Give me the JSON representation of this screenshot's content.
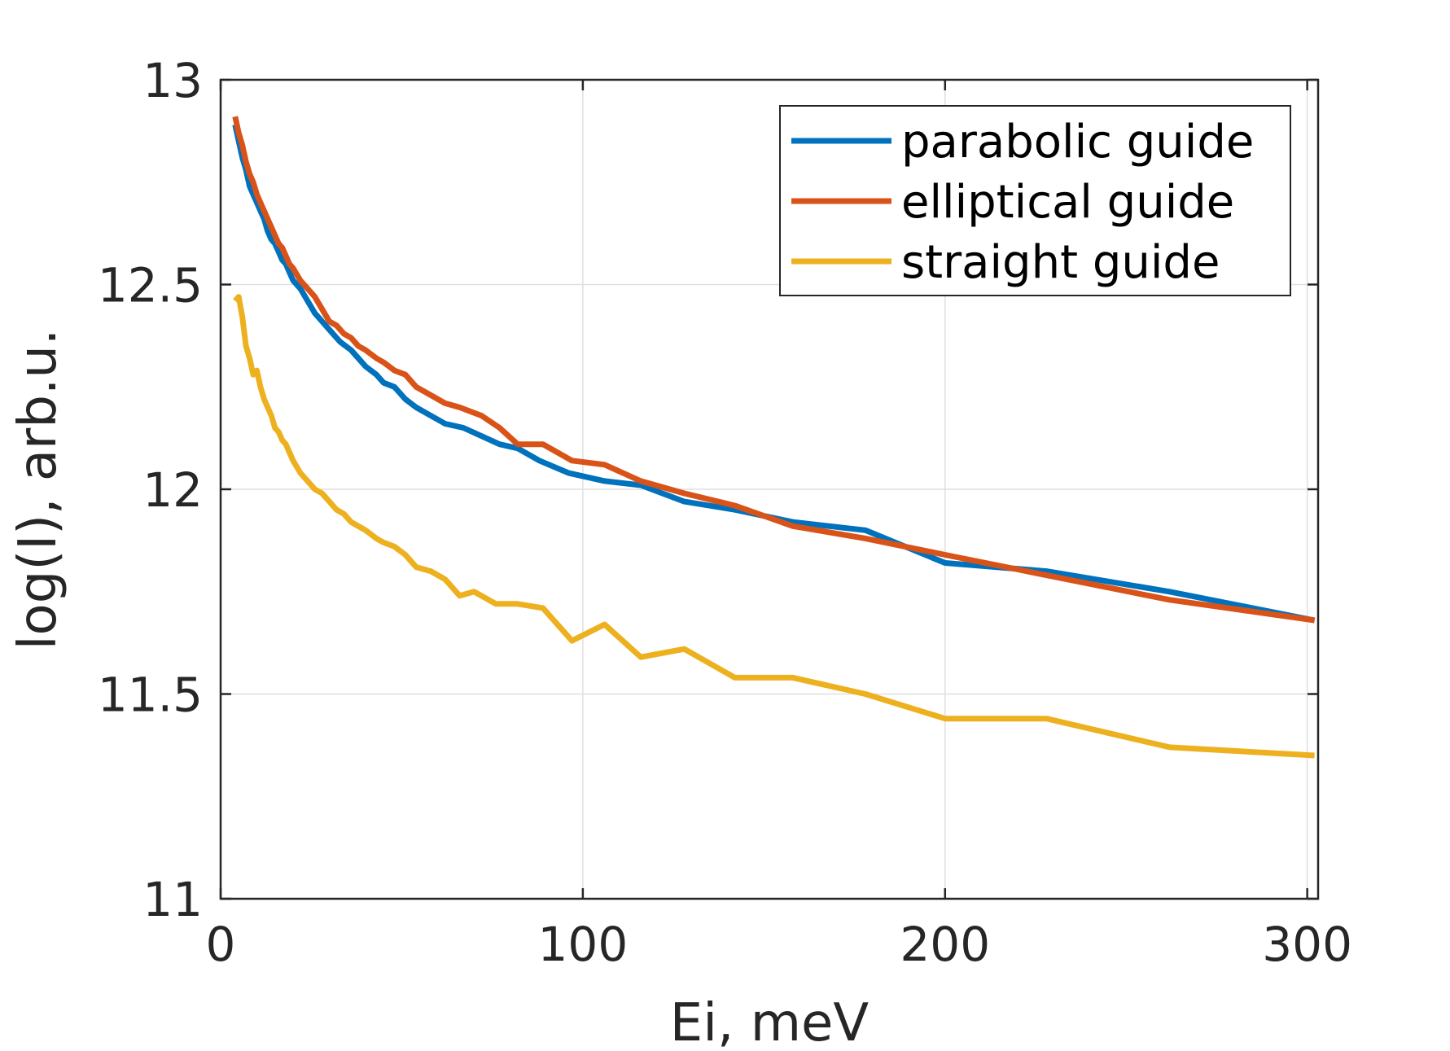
{
  "chart_data": {
    "type": "line",
    "title": "",
    "xlabel": "Ei, meV",
    "ylabel": "log(I), arb.u.",
    "xlim": [
      0,
      303
    ],
    "ylim": [
      11,
      13
    ],
    "xticks": [
      0,
      100,
      200,
      300
    ],
    "yticks": [
      11,
      11.5,
      12,
      12.5,
      13
    ],
    "xtick_labels": [
      "0",
      "100",
      "200",
      "300"
    ],
    "ytick_labels": [
      "11",
      "11.5",
      "12",
      "12.5",
      "13"
    ],
    "grid": true,
    "legend_position": "top-right",
    "series": [
      {
        "name": "parabolic guide",
        "color": "#0072BD",
        "points": [
          [
            4,
            12.89
          ],
          [
            5,
            12.85
          ],
          [
            6,
            12.81
          ],
          [
            7,
            12.78
          ],
          [
            8,
            12.74
          ],
          [
            9,
            12.72
          ],
          [
            10,
            12.7
          ],
          [
            11,
            12.68
          ],
          [
            12,
            12.66
          ],
          [
            13,
            12.63
          ],
          [
            14,
            12.61
          ],
          [
            15,
            12.6
          ],
          [
            16,
            12.58
          ],
          [
            17,
            12.56
          ],
          [
            18,
            12.55
          ],
          [
            19,
            12.53
          ],
          [
            20,
            12.51
          ],
          [
            22,
            12.49
          ],
          [
            24,
            12.46
          ],
          [
            26,
            12.43
          ],
          [
            28,
            12.41
          ],
          [
            31,
            12.38
          ],
          [
            33,
            12.36
          ],
          [
            36,
            12.34
          ],
          [
            38,
            12.32
          ],
          [
            40,
            12.3
          ],
          [
            43,
            12.28
          ],
          [
            45,
            12.26
          ],
          [
            48,
            12.25
          ],
          [
            51,
            12.22
          ],
          [
            54,
            12.2
          ],
          [
            58,
            12.18
          ],
          [
            62,
            12.16
          ],
          [
            67,
            12.15
          ],
          [
            72,
            12.13
          ],
          [
            77,
            12.11
          ],
          [
            82,
            12.1
          ],
          [
            88,
            12.07
          ],
          [
            96,
            12.04
          ],
          [
            106,
            12.02
          ],
          [
            116,
            12.01
          ],
          [
            128,
            11.97
          ],
          [
            142,
            11.95
          ],
          [
            158,
            11.92
          ],
          [
            178,
            11.9
          ],
          [
            200,
            11.82
          ],
          [
            228,
            11.8
          ],
          [
            262,
            11.75
          ],
          [
            302,
            11.68
          ]
        ]
      },
      {
        "name": "elliptical guide",
        "color": "#D95319",
        "points": [
          [
            4,
            12.91
          ],
          [
            5,
            12.87
          ],
          [
            6,
            12.84
          ],
          [
            7,
            12.8
          ],
          [
            8,
            12.77
          ],
          [
            9,
            12.75
          ],
          [
            10,
            12.72
          ],
          [
            11,
            12.7
          ],
          [
            12,
            12.68
          ],
          [
            13,
            12.66
          ],
          [
            14,
            12.64
          ],
          [
            15,
            12.62
          ],
          [
            16,
            12.6
          ],
          [
            17,
            12.59
          ],
          [
            18,
            12.57
          ],
          [
            19,
            12.55
          ],
          [
            20,
            12.54
          ],
          [
            22,
            12.51
          ],
          [
            24,
            12.49
          ],
          [
            26,
            12.47
          ],
          [
            28,
            12.44
          ],
          [
            30,
            12.41
          ],
          [
            32,
            12.4
          ],
          [
            34,
            12.38
          ],
          [
            36,
            12.37
          ],
          [
            38,
            12.35
          ],
          [
            40,
            12.34
          ],
          [
            43,
            12.32
          ],
          [
            45,
            12.31
          ],
          [
            48,
            12.29
          ],
          [
            51,
            12.28
          ],
          [
            54,
            12.25
          ],
          [
            58,
            12.23
          ],
          [
            62,
            12.21
          ],
          [
            66,
            12.2
          ],
          [
            72,
            12.18
          ],
          [
            77,
            12.15
          ],
          [
            82,
            12.11
          ],
          [
            89,
            12.11
          ],
          [
            97,
            12.07
          ],
          [
            106,
            12.06
          ],
          [
            116,
            12.02
          ],
          [
            128,
            11.99
          ],
          [
            142,
            11.96
          ],
          [
            158,
            11.91
          ],
          [
            178,
            11.88
          ],
          [
            200,
            11.84
          ],
          [
            228,
            11.79
          ],
          [
            262,
            11.73
          ],
          [
            302,
            11.68
          ]
        ]
      },
      {
        "name": "straight guide",
        "color": "#EDB120",
        "points": [
          [
            4,
            12.46
          ],
          [
            5,
            12.47
          ],
          [
            6,
            12.42
          ],
          [
            7,
            12.35
          ],
          [
            8,
            12.32
          ],
          [
            9,
            12.28
          ],
          [
            10,
            12.29
          ],
          [
            11,
            12.25
          ],
          [
            12,
            12.22
          ],
          [
            13,
            12.2
          ],
          [
            14,
            12.18
          ],
          [
            15,
            12.15
          ],
          [
            16,
            12.14
          ],
          [
            17,
            12.12
          ],
          [
            18,
            12.11
          ],
          [
            19,
            12.09
          ],
          [
            20,
            12.07
          ],
          [
            22,
            12.04
          ],
          [
            24,
            12.02
          ],
          [
            26,
            12.0
          ],
          [
            28,
            11.99
          ],
          [
            30,
            11.97
          ],
          [
            32,
            11.95
          ],
          [
            34,
            11.94
          ],
          [
            36,
            11.92
          ],
          [
            38,
            11.91
          ],
          [
            40,
            11.9
          ],
          [
            43,
            11.88
          ],
          [
            45,
            11.87
          ],
          [
            48,
            11.86
          ],
          [
            51,
            11.84
          ],
          [
            54,
            11.81
          ],
          [
            58,
            11.8
          ],
          [
            62,
            11.78
          ],
          [
            66,
            11.74
          ],
          [
            70,
            11.75
          ],
          [
            76,
            11.72
          ],
          [
            82,
            11.72
          ],
          [
            89,
            11.71
          ],
          [
            97,
            11.63
          ],
          [
            106,
            11.67
          ],
          [
            116,
            11.59
          ],
          [
            128,
            11.61
          ],
          [
            142,
            11.54
          ],
          [
            158,
            11.54
          ],
          [
            178,
            11.5
          ],
          [
            200,
            11.44
          ],
          [
            228,
            11.44
          ],
          [
            262,
            11.37
          ],
          [
            302,
            11.35
          ]
        ]
      }
    ]
  }
}
